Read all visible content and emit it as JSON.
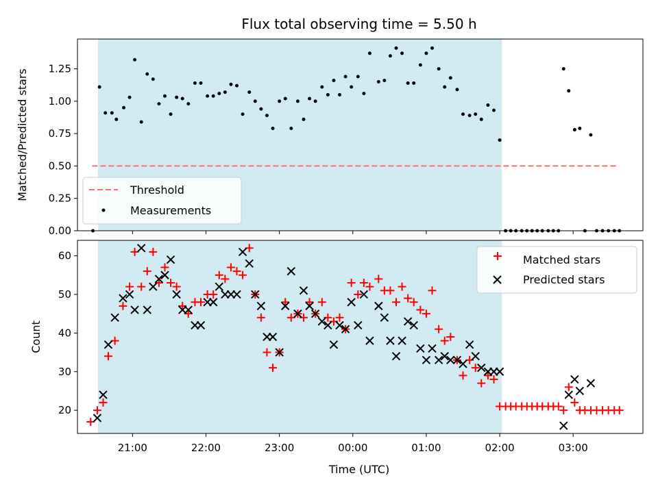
{
  "figure": {
    "title": "Flux total observing time = 5.50 h"
  },
  "colors": {
    "observing_window": "#add8e6",
    "threshold": "#ff6b6b",
    "measurements": "#000000",
    "matched": "#ff0000",
    "predicted": "#000000"
  },
  "chart_data": [
    {
      "type": "scatter",
      "panel": "top",
      "title": "Flux total observing time = 5.50 h",
      "xlabel": "",
      "ylabel": "Matched/Predicted stars",
      "x_unit": "hours UTC (values > 24 are after midnight)",
      "xlim": [
        20.25,
        27.95
      ],
      "ylim": [
        0.0,
        1.48
      ],
      "yticks": [
        "0.00",
        "0.25",
        "0.50",
        "0.75",
        "1.00",
        "1.25"
      ],
      "ytick_values": [
        0.0,
        0.25,
        0.5,
        0.75,
        1.0,
        1.25
      ],
      "grid": false,
      "legend": "lower-left",
      "shaded_region": [
        20.53,
        26.03
      ],
      "series": [
        {
          "name": "Threshold",
          "style": "dashed-line",
          "x": [
            20.45,
            27.62
          ],
          "y": [
            0.5,
            0.5
          ]
        },
        {
          "name": "Measurements",
          "style": "dot",
          "points": [
            [
              20.46,
              0.0
            ],
            [
              20.55,
              1.11
            ],
            [
              20.63,
              0.91
            ],
            [
              20.72,
              0.91
            ],
            [
              20.78,
              0.86
            ],
            [
              20.88,
              0.95
            ],
            [
              20.96,
              1.03
            ],
            [
              21.03,
              1.32
            ],
            [
              21.12,
              0.84
            ],
            [
              21.2,
              1.21
            ],
            [
              21.28,
              1.17
            ],
            [
              21.36,
              0.98
            ],
            [
              21.44,
              1.04
            ],
            [
              21.52,
              0.9
            ],
            [
              21.6,
              1.03
            ],
            [
              21.68,
              1.02
            ],
            [
              21.76,
              0.98
            ],
            [
              21.85,
              1.14
            ],
            [
              21.93,
              1.14
            ],
            [
              22.02,
              1.04
            ],
            [
              22.1,
              1.04
            ],
            [
              22.18,
              1.06
            ],
            [
              22.26,
              1.07
            ],
            [
              22.34,
              1.13
            ],
            [
              22.42,
              1.12
            ],
            [
              22.5,
              0.9
            ],
            [
              22.59,
              1.07
            ],
            [
              22.67,
              1.0
            ],
            [
              22.75,
              0.94
            ],
            [
              22.83,
              0.89
            ],
            [
              22.91,
              0.79
            ],
            [
              23.0,
              1.0
            ],
            [
              23.08,
              1.02
            ],
            [
              23.16,
              0.79
            ],
            [
              23.25,
              1.0
            ],
            [
              23.33,
              0.86
            ],
            [
              23.41,
              1.02
            ],
            [
              23.49,
              1.0
            ],
            [
              23.58,
              1.11
            ],
            [
              23.66,
              1.05
            ],
            [
              23.74,
              1.16
            ],
            [
              23.82,
              1.05
            ],
            [
              23.9,
              1.19
            ],
            [
              23.98,
              1.11
            ],
            [
              24.07,
              1.19
            ],
            [
              24.15,
              1.06
            ],
            [
              24.23,
              1.37
            ],
            [
              24.35,
              1.15
            ],
            [
              24.43,
              1.16
            ],
            [
              24.51,
              1.35
            ],
            [
              24.59,
              1.41
            ],
            [
              24.67,
              1.37
            ],
            [
              24.75,
              1.14
            ],
            [
              24.83,
              1.14
            ],
            [
              24.92,
              1.28
            ],
            [
              25.0,
              1.37
            ],
            [
              25.08,
              1.41
            ],
            [
              25.17,
              1.25
            ],
            [
              25.25,
              1.11
            ],
            [
              25.33,
              1.18
            ],
            [
              25.42,
              1.09
            ],
            [
              25.5,
              0.9
            ],
            [
              25.59,
              0.89
            ],
            [
              25.67,
              0.9
            ],
            [
              25.75,
              0.86
            ],
            [
              25.84,
              0.97
            ],
            [
              25.92,
              0.93
            ],
            [
              26.0,
              0.7
            ],
            [
              26.08,
              0.0
            ],
            [
              26.15,
              0.0
            ],
            [
              26.22,
              0.0
            ],
            [
              26.3,
              0.0
            ],
            [
              26.37,
              0.0
            ],
            [
              26.44,
              0.0
            ],
            [
              26.51,
              0.0
            ],
            [
              26.58,
              0.0
            ],
            [
              26.66,
              0.0
            ],
            [
              26.73,
              0.0
            ],
            [
              26.8,
              0.0
            ],
            [
              26.87,
              1.25
            ],
            [
              26.94,
              1.08
            ],
            [
              27.02,
              0.78
            ],
            [
              27.09,
              0.79
            ],
            [
              27.16,
              0.0
            ],
            [
              27.24,
              0.74
            ],
            [
              27.32,
              0.0
            ],
            [
              27.4,
              0.0
            ],
            [
              27.48,
              0.0
            ],
            [
              27.56,
              0.0
            ],
            [
              27.63,
              0.0
            ]
          ]
        }
      ]
    },
    {
      "type": "scatter",
      "panel": "bottom",
      "title": "",
      "xlabel": "Time (UTC)",
      "ylabel": "Count",
      "x_unit": "hours UTC (values > 24 are after midnight)",
      "xlim": [
        20.25,
        27.95
      ],
      "ylim": [
        14.0,
        64.0
      ],
      "yticks": [
        "20",
        "30",
        "40",
        "50",
        "60"
      ],
      "ytick_values": [
        20,
        30,
        40,
        50,
        60
      ],
      "xticks": [
        "21:00",
        "22:00",
        "23:00",
        "00:00",
        "01:00",
        "02:00",
        "03:00"
      ],
      "xtick_values": [
        21,
        22,
        23,
        24,
        25,
        26,
        27
      ],
      "grid": false,
      "legend": "upper-right",
      "shaded_region": [
        20.53,
        26.03
      ],
      "series": [
        {
          "name": "Matched stars",
          "style": "plus",
          "points": [
            [
              20.43,
              17
            ],
            [
              20.52,
              20
            ],
            [
              20.6,
              22
            ],
            [
              20.67,
              34
            ],
            [
              20.76,
              38
            ],
            [
              20.87,
              47
            ],
            [
              20.96,
              52
            ],
            [
              21.03,
              61
            ],
            [
              21.12,
              52
            ],
            [
              21.2,
              56
            ],
            [
              21.28,
              61
            ],
            [
              21.36,
              53
            ],
            [
              21.44,
              57
            ],
            [
              21.52,
              53
            ],
            [
              21.6,
              52
            ],
            [
              21.68,
              47
            ],
            [
              21.76,
              45
            ],
            [
              21.85,
              48
            ],
            [
              21.93,
              48
            ],
            [
              22.02,
              50
            ],
            [
              22.1,
              50
            ],
            [
              22.18,
              55
            ],
            [
              22.26,
              54
            ],
            [
              22.34,
              57
            ],
            [
              22.42,
              56
            ],
            [
              22.5,
              55
            ],
            [
              22.59,
              62
            ],
            [
              22.67,
              50
            ],
            [
              22.75,
              44
            ],
            [
              22.83,
              35
            ],
            [
              22.91,
              31
            ],
            [
              23.0,
              35
            ],
            [
              23.08,
              48
            ],
            [
              23.16,
              44
            ],
            [
              23.25,
              45
            ],
            [
              23.33,
              44
            ],
            [
              23.41,
              48
            ],
            [
              23.49,
              45
            ],
            [
              23.58,
              48
            ],
            [
              23.66,
              44
            ],
            [
              23.74,
              43
            ],
            [
              23.82,
              44
            ],
            [
              23.9,
              41
            ],
            [
              23.98,
              53
            ],
            [
              24.07,
              50
            ],
            [
              24.15,
              53
            ],
            [
              24.23,
              52
            ],
            [
              24.35,
              54
            ],
            [
              24.43,
              51
            ],
            [
              24.51,
              51
            ],
            [
              24.59,
              48
            ],
            [
              24.67,
              52
            ],
            [
              24.75,
              49
            ],
            [
              24.83,
              48
            ],
            [
              24.92,
              46
            ],
            [
              25.0,
              45
            ],
            [
              25.08,
              51
            ],
            [
              25.17,
              41
            ],
            [
              25.25,
              38
            ],
            [
              25.33,
              39
            ],
            [
              25.42,
              33
            ],
            [
              25.5,
              29
            ],
            [
              25.59,
              33
            ],
            [
              25.67,
              31
            ],
            [
              25.75,
              27
            ],
            [
              25.84,
              29
            ],
            [
              25.92,
              28
            ],
            [
              26.0,
              21
            ],
            [
              26.08,
              21
            ],
            [
              26.15,
              21
            ],
            [
              26.22,
              21
            ],
            [
              26.3,
              21
            ],
            [
              26.37,
              21
            ],
            [
              26.44,
              21
            ],
            [
              26.51,
              21
            ],
            [
              26.58,
              21
            ],
            [
              26.66,
              21
            ],
            [
              26.73,
              21
            ],
            [
              26.8,
              21
            ],
            [
              26.87,
              20
            ],
            [
              26.94,
              26
            ],
            [
              27.02,
              22
            ],
            [
              27.09,
              20
            ],
            [
              27.16,
              20
            ],
            [
              27.24,
              20
            ],
            [
              27.32,
              20
            ],
            [
              27.4,
              20
            ],
            [
              27.48,
              20
            ],
            [
              27.56,
              20
            ],
            [
              27.63,
              20
            ]
          ]
        },
        {
          "name": "Predicted stars",
          "style": "cross",
          "points": [
            [
              20.52,
              18
            ],
            [
              20.6,
              24
            ],
            [
              20.67,
              37
            ],
            [
              20.76,
              44
            ],
            [
              20.87,
              49
            ],
            [
              20.96,
              50
            ],
            [
              21.03,
              46
            ],
            [
              21.12,
              62
            ],
            [
              21.2,
              46
            ],
            [
              21.28,
              52
            ],
            [
              21.36,
              54
            ],
            [
              21.44,
              55
            ],
            [
              21.52,
              59
            ],
            [
              21.6,
              50
            ],
            [
              21.68,
              46
            ],
            [
              21.76,
              46
            ],
            [
              21.85,
              42
            ],
            [
              21.93,
              42
            ],
            [
              22.02,
              48
            ],
            [
              22.1,
              48
            ],
            [
              22.18,
              52
            ],
            [
              22.26,
              50
            ],
            [
              22.34,
              50
            ],
            [
              22.42,
              50
            ],
            [
              22.5,
              61
            ],
            [
              22.59,
              58
            ],
            [
              22.67,
              50
            ],
            [
              22.75,
              47
            ],
            [
              22.83,
              39
            ],
            [
              22.91,
              39
            ],
            [
              23.0,
              35
            ],
            [
              23.08,
              47
            ],
            [
              23.16,
              56
            ],
            [
              23.25,
              45
            ],
            [
              23.33,
              51
            ],
            [
              23.41,
              47
            ],
            [
              23.49,
              45
            ],
            [
              23.58,
              43
            ],
            [
              23.66,
              42
            ],
            [
              23.74,
              37
            ],
            [
              23.82,
              42
            ],
            [
              23.9,
              41
            ],
            [
              23.98,
              48
            ],
            [
              24.07,
              42
            ],
            [
              24.15,
              50
            ],
            [
              24.23,
              38
            ],
            [
              24.35,
              47
            ],
            [
              24.43,
              44
            ],
            [
              24.51,
              38
            ],
            [
              24.59,
              34
            ],
            [
              24.67,
              38
            ],
            [
              24.75,
              43
            ],
            [
              24.83,
              42
            ],
            [
              24.92,
              36
            ],
            [
              25.0,
              33
            ],
            [
              25.08,
              36
            ],
            [
              25.17,
              33
            ],
            [
              25.25,
              34
            ],
            [
              25.33,
              33
            ],
            [
              25.42,
              33
            ],
            [
              25.5,
              32
            ],
            [
              25.59,
              37
            ],
            [
              25.67,
              34
            ],
            [
              25.75,
              31
            ],
            [
              25.84,
              30
            ],
            [
              25.92,
              30
            ],
            [
              26.0,
              30
            ],
            [
              26.87,
              16
            ],
            [
              26.94,
              24
            ],
            [
              27.02,
              28
            ],
            [
              27.09,
              25
            ],
            [
              27.24,
              27
            ]
          ]
        }
      ]
    }
  ]
}
